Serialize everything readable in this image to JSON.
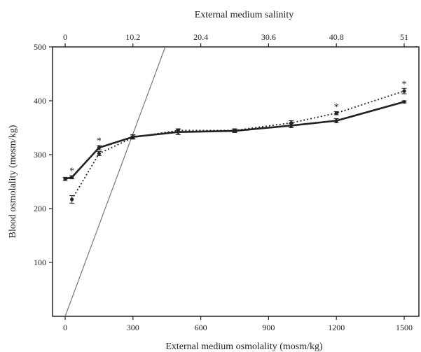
{
  "chart_data": {
    "type": "line",
    "title": "",
    "xlabel": "External medium osmolality (mosm/kg)",
    "ylabel": "Blood osmolality (mosm/kg)",
    "x2label": "External medium salinity",
    "xlim": [
      0,
      1500
    ],
    "ylim": [
      0,
      500
    ],
    "xticks": [
      0,
      300,
      600,
      900,
      1200,
      1500
    ],
    "xtick_labels": [
      "0",
      "300",
      "600",
      "900",
      "1200",
      "1500"
    ],
    "yticks": [
      100,
      200,
      300,
      400,
      500
    ],
    "ytick_labels": [
      "100",
      "200",
      "300",
      "400",
      "500"
    ],
    "x2ticks": [
      0,
      300,
      600,
      900,
      1200,
      1500
    ],
    "x2tick_labels": [
      "0",
      "10.2",
      "20.4",
      "30.6",
      "40.8",
      "51"
    ],
    "grid": false,
    "series": [
      {
        "style": "solid",
        "color": "#222222",
        "x": [
          0,
          30,
          150,
          300,
          500,
          750,
          1000,
          1200,
          1500
        ],
        "y": [
          255,
          258,
          313,
          333,
          342,
          344,
          354,
          363,
          398
        ],
        "err": [
          3,
          3,
          4,
          4,
          5,
          3,
          4,
          4,
          2
        ]
      },
      {
        "style": "dotted",
        "color": "#222222",
        "x": [
          30,
          150,
          300,
          500,
          750,
          1000,
          1200,
          1500
        ],
        "y": [
          217,
          302,
          332,
          345,
          345,
          359,
          377,
          418
        ],
        "err": [
          7,
          4,
          3,
          3,
          3,
          4,
          3,
          5
        ]
      }
    ],
    "isosmotic_line": {
      "color": "#777777",
      "points": [
        [
          0,
          0
        ],
        [
          443,
          500
        ]
      ]
    },
    "annotations": [
      {
        "text": "*",
        "x": 30,
        "y": 272
      },
      {
        "text": "*",
        "x": 150,
        "y": 328
      },
      {
        "text": "*",
        "x": 1200,
        "y": 391
      },
      {
        "text": "*",
        "x": 1500,
        "y": 433
      }
    ]
  }
}
